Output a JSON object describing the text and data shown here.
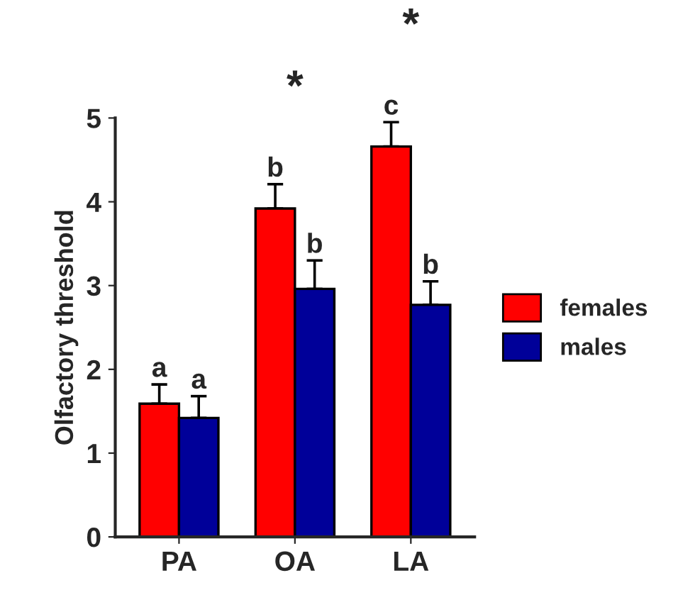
{
  "chart_data": {
    "type": "bar",
    "ylabel": "Olfactory threshold",
    "categories": [
      "PA",
      "OA",
      "LA"
    ],
    "series": [
      {
        "name": "females",
        "color": "#ff0000",
        "values": [
          1.59,
          3.92,
          4.66
        ],
        "errors": [
          [
            1.59,
            1.82
          ],
          [
            3.92,
            4.21
          ],
          [
            4.66,
            4.95
          ]
        ],
        "value_labels": [
          "a",
          "b",
          "c"
        ]
      },
      {
        "name": "males",
        "color": "#000099",
        "values": [
          1.42,
          2.96,
          2.77
        ],
        "errors": [
          [
            1.42,
            1.68
          ],
          [
            2.96,
            3.3
          ],
          [
            2.77,
            3.05
          ]
        ],
        "value_labels": [
          "a",
          "b",
          "b"
        ]
      }
    ],
    "ylim": [
      0,
      5
    ],
    "yticks": [
      0,
      1,
      2,
      3,
      4,
      5
    ],
    "grid": false,
    "legend": "right",
    "annotations": [
      "*",
      "*"
    ]
  }
}
